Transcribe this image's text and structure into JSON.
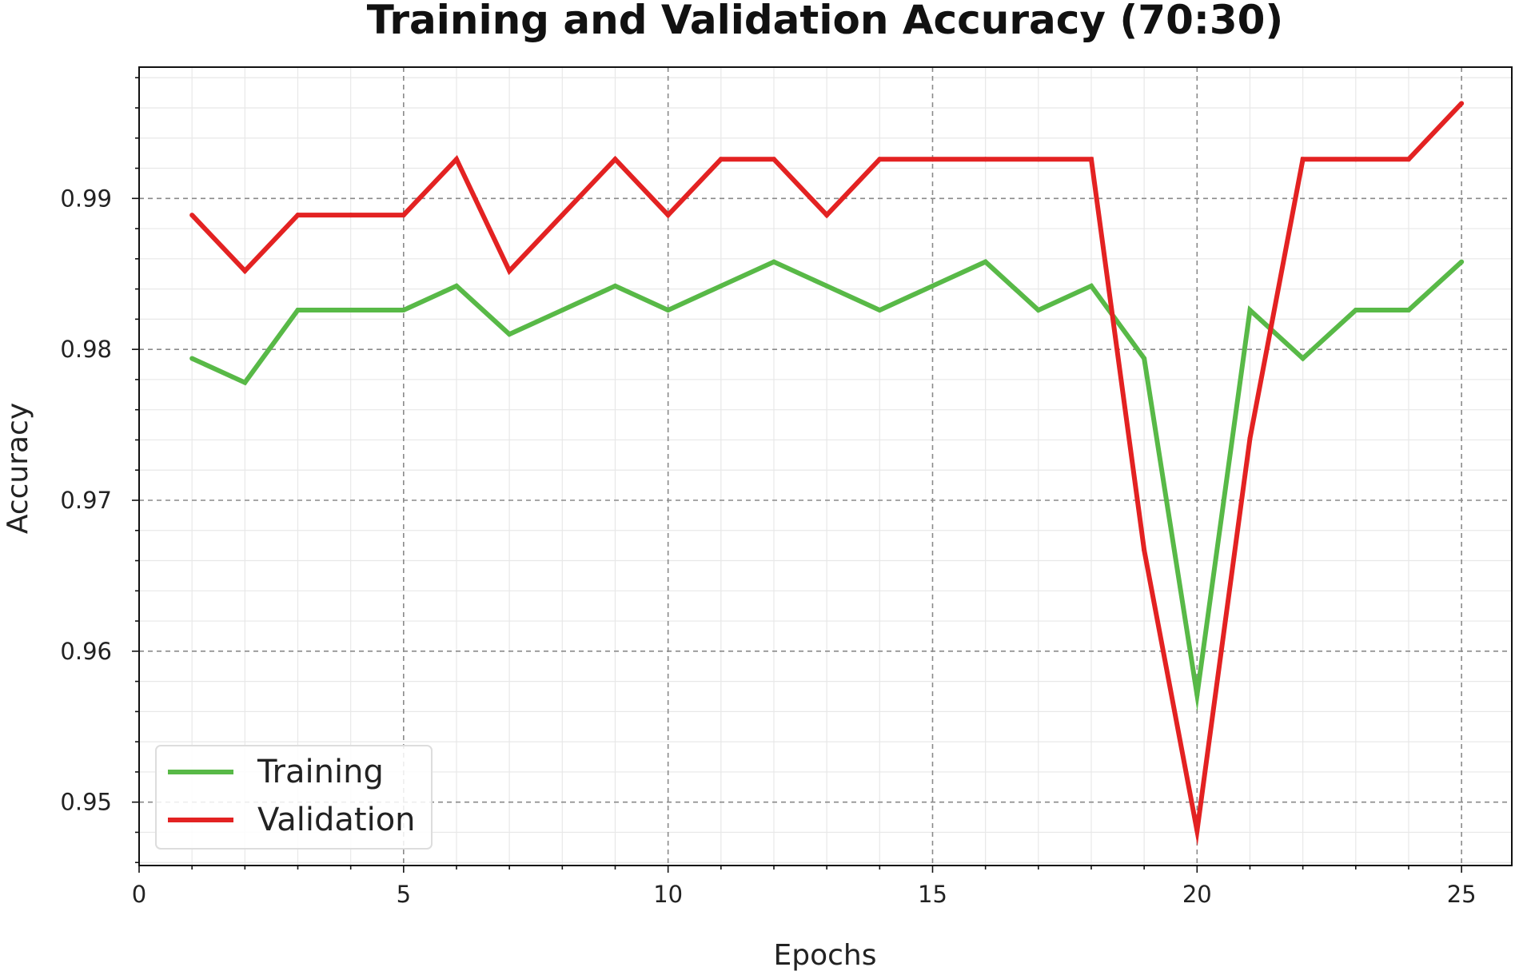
{
  "chart_data": {
    "type": "line",
    "title": "Training and Validation Accuracy (70:30)",
    "xlabel": "Epochs",
    "ylabel": "Accuracy",
    "xlim": [
      0,
      25.95
    ],
    "ylim": [
      0.9458,
      0.9987
    ],
    "xticks": [
      0,
      5,
      10,
      15,
      20,
      25
    ],
    "xtick_labels": [
      "0",
      "5",
      "10",
      "15",
      "20",
      "25"
    ],
    "yticks": [
      0.95,
      0.96,
      0.97,
      0.98,
      0.99
    ],
    "ytick_labels": [
      "0.95",
      "0.96",
      "0.97",
      "0.98",
      "0.99"
    ],
    "grid": true,
    "legend_position": "lower-left",
    "x": [
      1,
      2,
      3,
      4,
      5,
      6,
      7,
      8,
      9,
      10,
      11,
      12,
      13,
      14,
      15,
      16,
      17,
      18,
      19,
      20,
      21,
      22,
      23,
      24,
      25
    ],
    "series": [
      {
        "name": "Training",
        "color": "#58b947",
        "values": [
          0.9794,
          0.9778,
          0.9826,
          0.9826,
          0.9826,
          0.9842,
          0.981,
          0.9826,
          0.9842,
          0.9826,
          0.9842,
          0.9858,
          0.9842,
          0.9826,
          0.9842,
          0.9858,
          0.9826,
          0.9842,
          0.9794,
          0.9571,
          0.9826,
          0.9794,
          0.9826,
          0.9826,
          0.9858
        ]
      },
      {
        "name": "Validation",
        "color": "#e32222",
        "values": [
          0.9889,
          0.9852,
          0.9889,
          0.9889,
          0.9889,
          0.9926,
          0.9852,
          0.9889,
          0.9926,
          0.9889,
          0.9926,
          0.9926,
          0.9889,
          0.9926,
          0.9926,
          0.9926,
          0.9926,
          0.9926,
          0.9667,
          0.9481,
          0.9741,
          0.9926,
          0.9926,
          0.9926,
          0.9963
        ]
      }
    ]
  }
}
